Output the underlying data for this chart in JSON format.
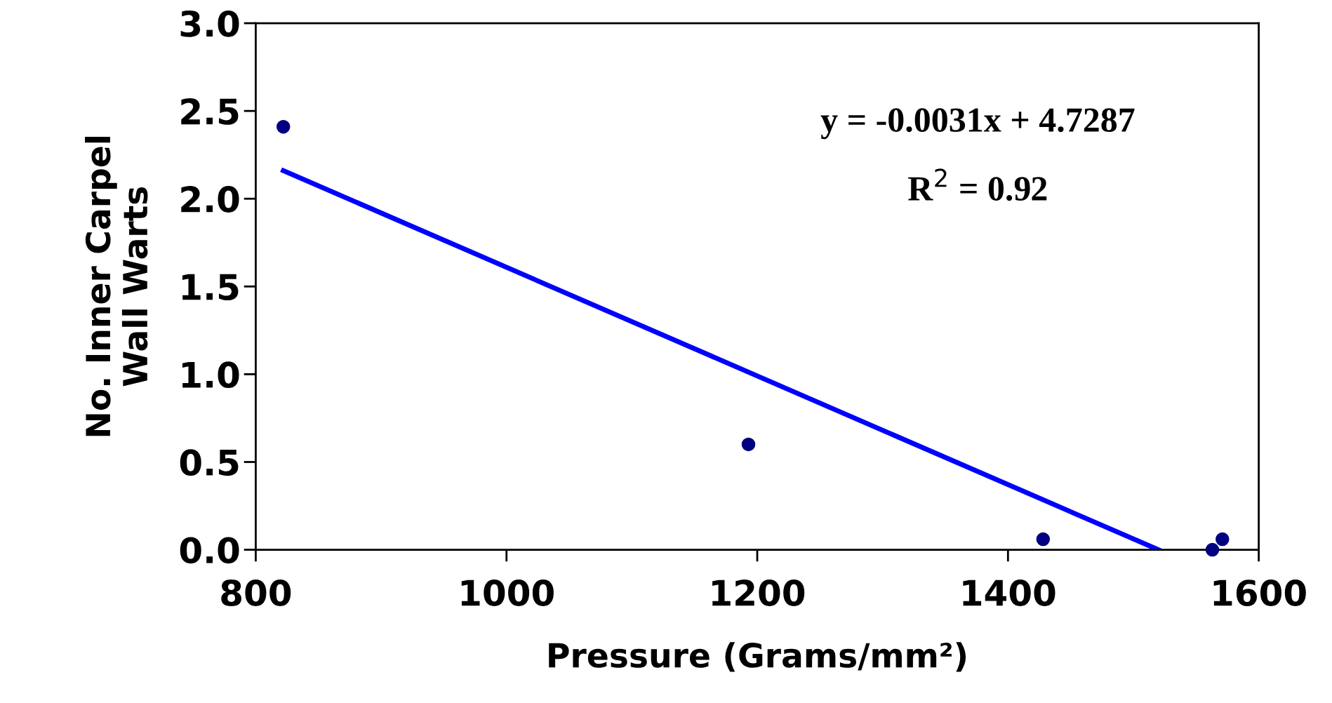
{
  "chart_data": {
    "type": "scatter",
    "xlabel": "Pressure (Grams/mm²)",
    "ylabel": "No. Inner Carpel\nWall Warts",
    "series": [
      {
        "color": "#000080",
        "marker": "circle",
        "x": [
          822,
          1193,
          1428,
          1563,
          1571
        ],
        "values": [
          2.41,
          0.6,
          0.06,
          0.0,
          0.06
        ]
      },
      {
        "type": "line",
        "color": "#0000ff",
        "marker": "none",
        "line_style": "solid",
        "x": [
          822,
          1520
        ],
        "values": [
          2.16,
          0.0
        ]
      }
    ],
    "annotations": [
      "y = -0.0031x + 4.7287",
      "R$^{2}$ = 0.92"
    ],
    "xlim": [
      800,
      1600
    ],
    "xticks": [
      800,
      1000,
      1200,
      1400,
      1600
    ],
    "ylim": [
      0,
      3
    ],
    "yticks": [
      {
        "value": 0,
        "label": "0.0"
      },
      {
        "value": 0.5,
        "label": "0.5"
      },
      {
        "value": 1,
        "label": "1.0"
      },
      {
        "value": 1.5,
        "label": "1.5"
      },
      {
        "value": 2,
        "label": "2.0"
      },
      {
        "value": 2.5,
        "label": "2.5"
      },
      {
        "value": 3,
        "label": "3.0"
      }
    ],
    "grid": false,
    "legend": false
  }
}
